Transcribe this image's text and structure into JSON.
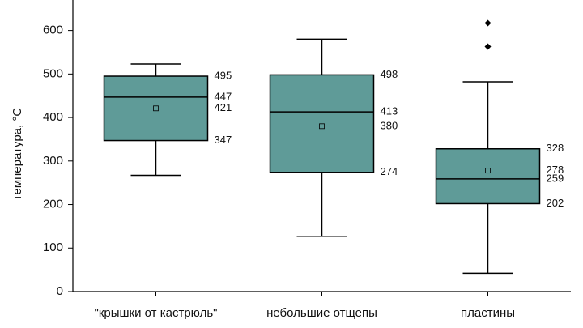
{
  "chart_data": {
    "type": "box",
    "y_label": "температура, °С",
    "categories": [
      "\"крышки от кастрюль\"",
      "небольшие отщепы",
      "пластины"
    ],
    "color": "#5f9b98",
    "boxes": [
      {
        "whisker_low": 267,
        "q1": 347,
        "median": 447,
        "mean": 421,
        "q3": 495,
        "whisker_high": 523,
        "outliers": []
      },
      {
        "whisker_low": 127,
        "q1": 274,
        "median": 413,
        "mean": 380,
        "q3": 498,
        "whisker_high": 580,
        "outliers": []
      },
      {
        "whisker_low": 42,
        "q1": 202,
        "median": 259,
        "mean": 278,
        "q3": 328,
        "whisker_high": 482,
        "outliers": [
          563,
          617
        ]
      }
    ],
    "ylim": [
      0,
      670
    ],
    "yticks": [
      0,
      100,
      200,
      300,
      400,
      500,
      600
    ]
  }
}
